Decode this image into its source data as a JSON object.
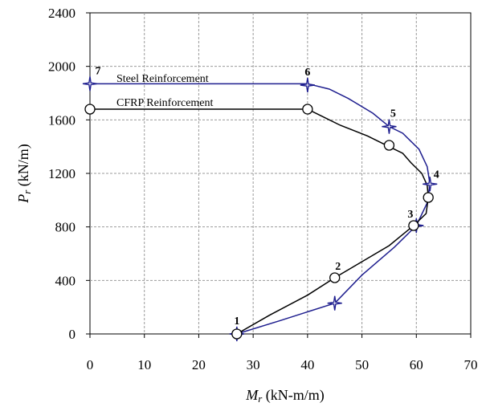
{
  "chart_data": {
    "type": "line",
    "xlabel": {
      "symbol": "M",
      "subscript": "r",
      "unit": " (kN-m/m)"
    },
    "ylabel": {
      "symbol": "P",
      "subscript": "r",
      "unit": " (kN/m)"
    },
    "xlim": [
      0,
      70
    ],
    "ylim": [
      0,
      2400
    ],
    "xticks": [
      0,
      10,
      20,
      30,
      40,
      50,
      60,
      70
    ],
    "yticks": [
      0,
      400,
      800,
      1200,
      1600,
      2000,
      2400
    ],
    "grid": true,
    "series": [
      {
        "name": "Steel Reinforcement",
        "color": "#1f1f8f",
        "marker": "star",
        "points": [
          [
            27,
            0
          ],
          [
            35,
            100
          ],
          [
            45,
            230
          ],
          [
            50,
            440
          ],
          [
            56,
            650
          ],
          [
            60,
            810
          ],
          [
            62,
            980
          ],
          [
            62.5,
            1120
          ],
          [
            62,
            1250
          ],
          [
            60.5,
            1380
          ],
          [
            57.5,
            1500
          ],
          [
            55,
            1550
          ],
          [
            52,
            1650
          ],
          [
            47.5,
            1760
          ],
          [
            44,
            1830
          ],
          [
            40,
            1870
          ],
          [
            20,
            1870
          ],
          [
            0,
            1870
          ]
        ],
        "markers": [
          {
            "x": 27,
            "y": 0,
            "label": "1"
          },
          {
            "x": 45,
            "y": 230,
            "label": ""
          },
          {
            "x": 60,
            "y": 810,
            "label": ""
          },
          {
            "x": 62.5,
            "y": 1120,
            "label": "4"
          },
          {
            "x": 55,
            "y": 1550,
            "label": "5"
          },
          {
            "x": 40,
            "y": 1860,
            "label": "6"
          },
          {
            "x": 0,
            "y": 1870,
            "label": "7"
          }
        ]
      },
      {
        "name": "CFRP Reinforcement",
        "color": "#000000",
        "marker": "circle",
        "points": [
          [
            27,
            0
          ],
          [
            33,
            140
          ],
          [
            40,
            290
          ],
          [
            45,
            420
          ],
          [
            50,
            540
          ],
          [
            55,
            660
          ],
          [
            59.5,
            810
          ],
          [
            61.8,
            900
          ],
          [
            62.2,
            1020
          ],
          [
            62,
            1110
          ],
          [
            61,
            1200
          ],
          [
            59,
            1280
          ],
          [
            57.5,
            1350
          ],
          [
            55,
            1400
          ],
          [
            51,
            1480
          ],
          [
            46,
            1560
          ],
          [
            42.5,
            1630
          ],
          [
            40,
            1680
          ],
          [
            20,
            1680
          ],
          [
            0,
            1680
          ]
        ],
        "markers": [
          {
            "x": 27,
            "y": 0,
            "label": ""
          },
          {
            "x": 45,
            "y": 420,
            "label": "2"
          },
          {
            "x": 59.5,
            "y": 810,
            "label": "3"
          },
          {
            "x": 62.2,
            "y": 1020,
            "label": ""
          },
          {
            "x": 55,
            "y": 1410,
            "label": ""
          },
          {
            "x": 40,
            "y": 1680,
            "label": ""
          },
          {
            "x": 0,
            "y": 1680,
            "label": ""
          }
        ]
      }
    ]
  }
}
